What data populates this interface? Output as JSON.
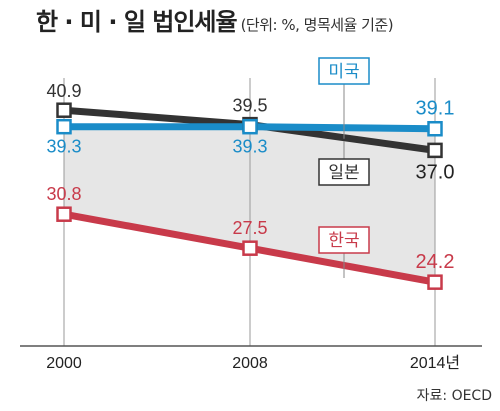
{
  "title": "한 · 미 · 일 법인세율",
  "subtitle": "(단위: %, 명목세율 기준)",
  "source": "자료: OECD",
  "colors": {
    "japan": "#333333",
    "usa": "#1a8cc8",
    "korea": "#c83a4a",
    "plot_bg": "#e6e6e6"
  },
  "chart_data": {
    "type": "line",
    "x": [
      "2000",
      "2008",
      "2014년"
    ],
    "ylim": [
      18,
      45
    ],
    "grid": false,
    "series": [
      {
        "name": "일본",
        "values": [
          40.9,
          39.5,
          37.0
        ],
        "labels": [
          "40.9",
          "39.5",
          "37.0"
        ]
      },
      {
        "name": "미국",
        "values": [
          39.3,
          39.3,
          39.1
        ],
        "labels": [
          "39.3",
          "39.3",
          "39.1"
        ]
      },
      {
        "name": "한국",
        "values": [
          30.8,
          27.5,
          24.2
        ],
        "labels": [
          "30.8",
          "27.5",
          "24.2"
        ]
      }
    ]
  }
}
